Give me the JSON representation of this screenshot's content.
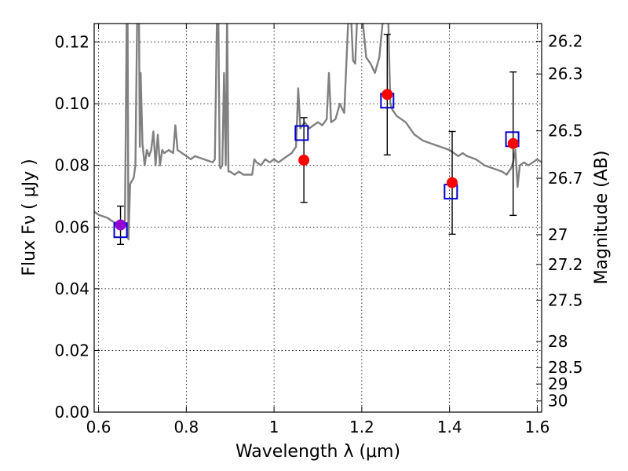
{
  "chart_data": {
    "type": "scatter",
    "xlabel": "Wavelength  λ (μm)",
    "ylabel": "Flux  Fν  ( μJy )",
    "y2label": "Magnitude (AB)",
    "xlim": [
      0.59,
      1.61
    ],
    "ylim": [
      0.0,
      0.126
    ],
    "x_ticks": [
      "0.6",
      "0.8",
      "1",
      "1.2",
      "1.4",
      "1.6"
    ],
    "y_ticks": [
      "0.00",
      "0.02",
      "0.04",
      "0.06",
      "0.08",
      "0.10",
      "0.12"
    ],
    "y2_ticks": [
      "26.2",
      "26.3",
      "26.5",
      "26.7",
      "27",
      "27.2",
      "27.5",
      "28",
      "28.5",
      "29",
      "30"
    ],
    "grid": true,
    "colors": {
      "model": "#808080",
      "observed": "#ff0000",
      "observed_first": "#9400d3",
      "template": "#0000cc",
      "errorbar": "#000000"
    },
    "model_spectrum": {
      "x": [
        0.59,
        0.6,
        0.62,
        0.63,
        0.645,
        0.655,
        0.66,
        0.662,
        0.664,
        0.666,
        0.668,
        0.672,
        0.676,
        0.68,
        0.684,
        0.688,
        0.692,
        0.694,
        0.696,
        0.7,
        0.705,
        0.71,
        0.715,
        0.72,
        0.725,
        0.73,
        0.735,
        0.74,
        0.745,
        0.75,
        0.76,
        0.77,
        0.775,
        0.78,
        0.79,
        0.8,
        0.81,
        0.82,
        0.84,
        0.86,
        0.865,
        0.87,
        0.873,
        0.876,
        0.878,
        0.882,
        0.886,
        0.89,
        0.893,
        0.896,
        0.9,
        0.91,
        0.92,
        0.93,
        0.94,
        0.95,
        0.955,
        0.96,
        0.97,
        0.98,
        0.99,
        1.0,
        1.01,
        1.02,
        1.03,
        1.04,
        1.05,
        1.055,
        1.06,
        1.07,
        1.08,
        1.09,
        1.1,
        1.11,
        1.12,
        1.125,
        1.13,
        1.14,
        1.15,
        1.16,
        1.17,
        1.175,
        1.18,
        1.185,
        1.19,
        1.2,
        1.21,
        1.22,
        1.23,
        1.24,
        1.25,
        1.255,
        1.26,
        1.265,
        1.27,
        1.28,
        1.29,
        1.3,
        1.32,
        1.34,
        1.36,
        1.38,
        1.4,
        1.42,
        1.43,
        1.44,
        1.46,
        1.48,
        1.5,
        1.52,
        1.53,
        1.54,
        1.545,
        1.55,
        1.555,
        1.56,
        1.57,
        1.58,
        1.59,
        1.6,
        1.61
      ],
      "y": [
        0.065,
        0.064,
        0.063,
        0.062,
        0.061,
        0.06,
        0.062,
        0.09,
        0.13,
        0.13,
        0.056,
        0.074,
        0.075,
        0.076,
        0.08,
        0.13,
        0.13,
        0.086,
        0.11,
        0.087,
        0.08,
        0.085,
        0.083,
        0.085,
        0.091,
        0.08,
        0.09,
        0.08,
        0.085,
        0.084,
        0.085,
        0.084,
        0.093,
        0.085,
        0.084,
        0.083,
        0.082,
        0.083,
        0.082,
        0.081,
        0.082,
        0.13,
        0.13,
        0.08,
        0.079,
        0.08,
        0.11,
        0.08,
        0.13,
        0.078,
        0.078,
        0.077,
        0.078,
        0.077,
        0.077,
        0.077,
        0.082,
        0.081,
        0.08,
        0.082,
        0.081,
        0.082,
        0.081,
        0.082,
        0.083,
        0.084,
        0.086,
        0.105,
        0.092,
        0.094,
        0.092,
        0.093,
        0.094,
        0.093,
        0.095,
        0.11,
        0.094,
        0.095,
        0.1,
        0.097,
        0.13,
        0.13,
        0.114,
        0.113,
        0.13,
        0.13,
        0.115,
        0.113,
        0.11,
        0.115,
        0.13,
        0.13,
        0.13,
        0.1,
        0.098,
        0.096,
        0.095,
        0.094,
        0.09,
        0.088,
        0.087,
        0.086,
        0.085,
        0.083,
        0.084,
        0.083,
        0.082,
        0.08,
        0.079,
        0.078,
        0.077,
        0.079,
        0.081,
        0.085,
        0.073,
        0.08,
        0.081,
        0.08,
        0.081,
        0.082,
        0.081
      ]
    },
    "template_points": {
      "x": [
        0.65,
        1.063,
        1.258,
        1.403,
        1.543
      ],
      "y": [
        0.059,
        0.0905,
        0.101,
        0.0715,
        0.0885
      ]
    },
    "observed_points": {
      "x": [
        0.65,
        1.068,
        1.258,
        1.406,
        1.545
      ],
      "y": [
        0.0607,
        0.0817,
        0.103,
        0.0744,
        0.0871
      ],
      "err_low": [
        0.0063,
        0.0137,
        0.0196,
        0.0167,
        0.0233
      ],
      "err_high": [
        0.0061,
        0.0138,
        0.0195,
        0.0166,
        0.0232
      ]
    }
  }
}
